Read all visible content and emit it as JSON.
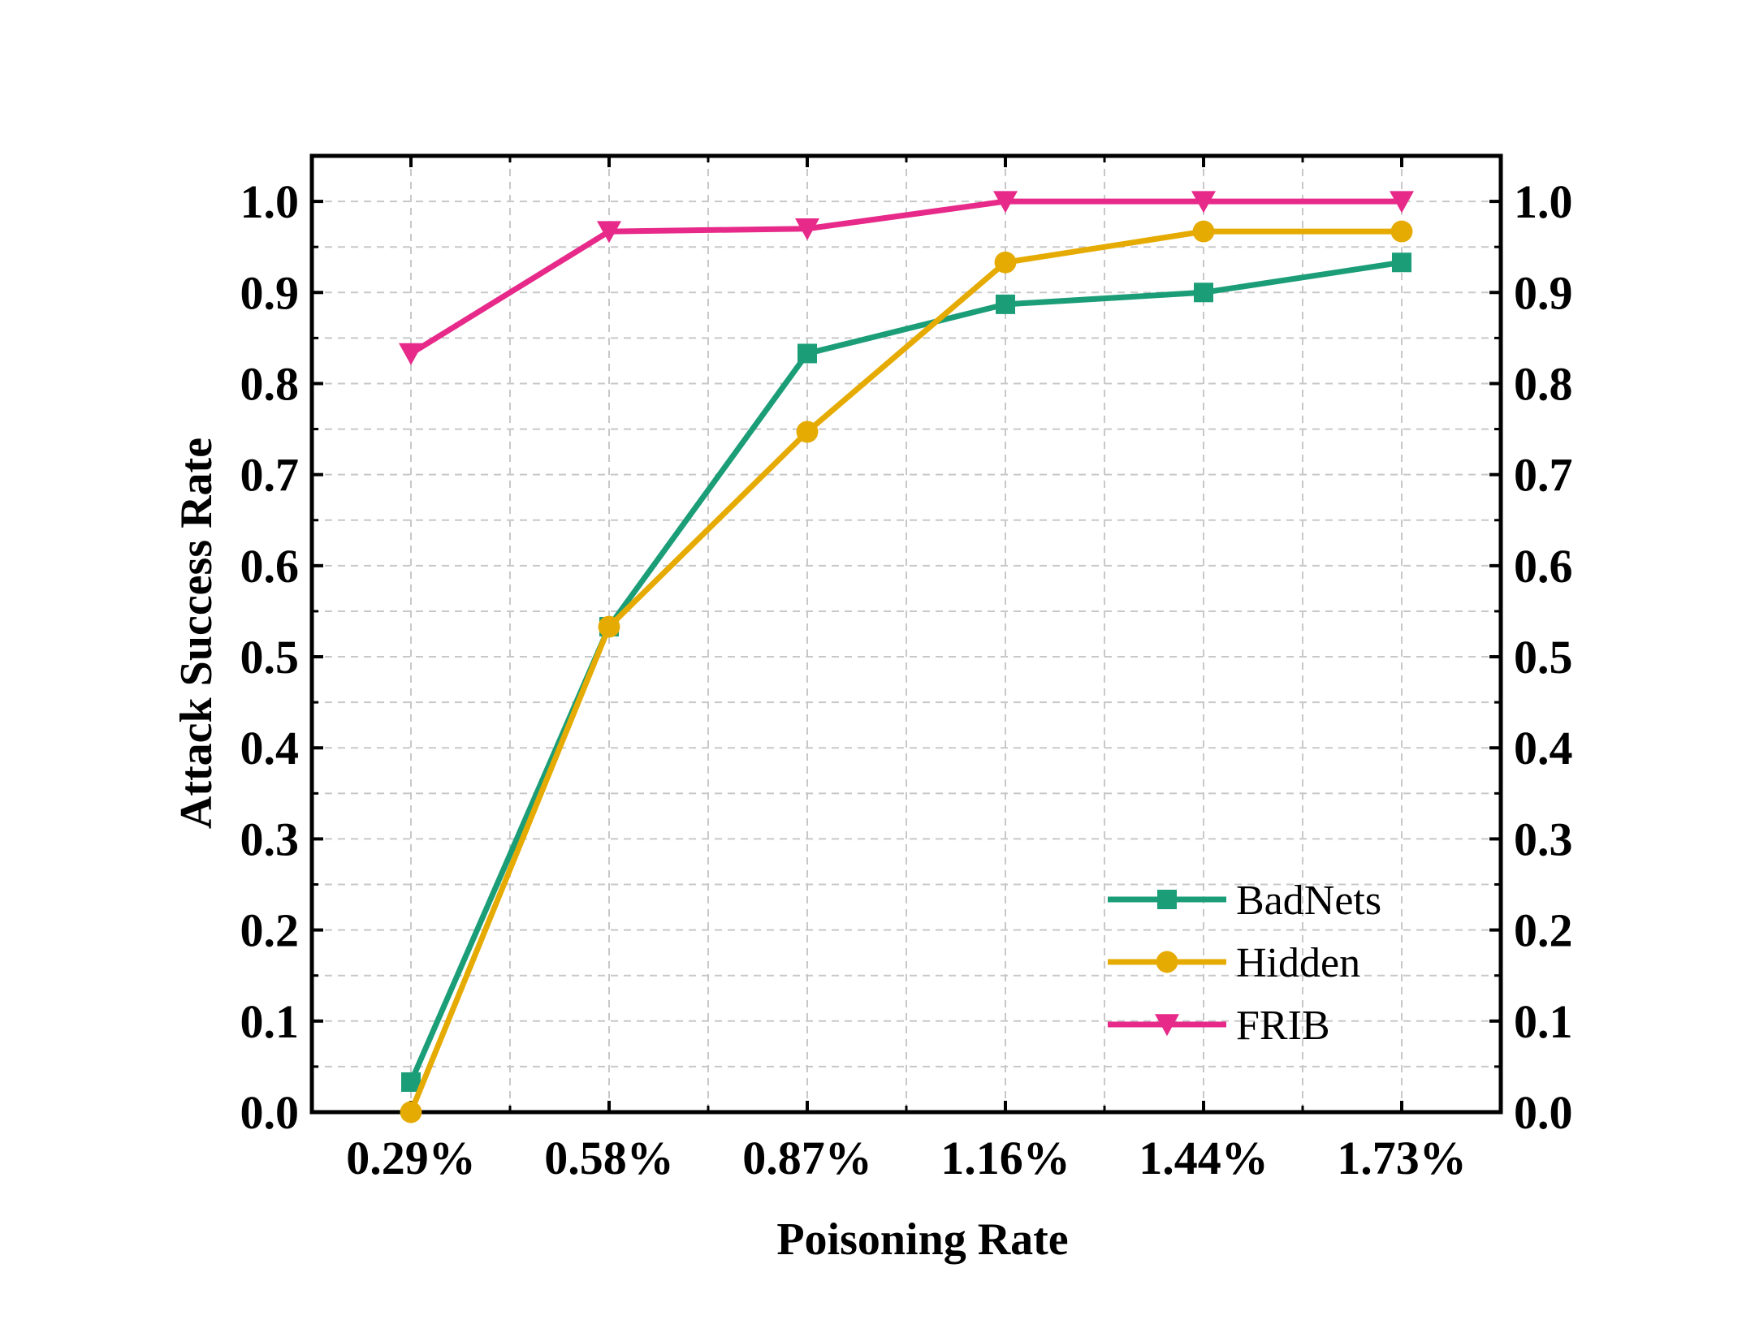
{
  "chart_data": {
    "type": "line",
    "title": "",
    "xlabel": "Poisoning Rate",
    "ylabel": "Attack Success Rate",
    "categories": [
      "0.29%",
      "0.58%",
      "0.87%",
      "1.16%",
      "1.44%",
      "1.73%"
    ],
    "ylim": [
      0.0,
      1.05
    ],
    "yticks": [
      "0.0",
      "0.1",
      "0.2",
      "0.3",
      "0.4",
      "0.5",
      "0.6",
      "0.7",
      "0.8",
      "0.9",
      "1.0"
    ],
    "grid": true,
    "secondary_y_axis_mirrored": true,
    "legend_position": "bottom-right",
    "series": [
      {
        "name": "BadNets",
        "values": [
          0.033,
          0.533,
          0.833,
          0.887,
          0.9,
          0.933
        ],
        "color": "#1b9e77",
        "marker": "square"
      },
      {
        "name": "Hidden",
        "values": [
          0.0,
          0.533,
          0.747,
          0.933,
          0.967,
          0.967
        ],
        "color": "#e6ab02",
        "marker": "circle"
      },
      {
        "name": "FRIB",
        "values": [
          0.833,
          0.967,
          0.97,
          1.0,
          1.0,
          1.0
        ],
        "color": "#e7298a",
        "marker": "triangle-down"
      }
    ]
  }
}
